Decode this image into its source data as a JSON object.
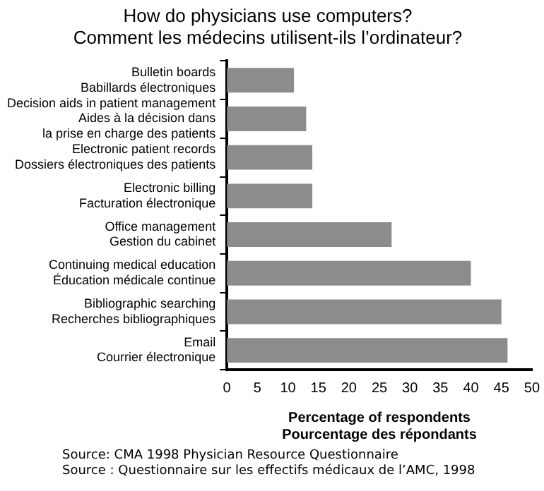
{
  "chart_data": {
    "type": "bar",
    "orientation": "horizontal",
    "title": "How do physicians use computers?\nComment les médecins utilisent-ils l’ordinateur?",
    "categories": [
      "Bulletin boards\nBabillards électroniques",
      "Decision aids in patient management\nAides à la décision dans\nla prise en charge des patients",
      "Electronic patient records\nDossiers électroniques des patients",
      "Electronic billing\nFacturation électronique",
      "Office management\nGestion du cabinet",
      "Continuing medical education\nÉducation médicale continue",
      "Bibliographic searching\nRecherches bibliographiques",
      "Email\nCourrier électronique"
    ],
    "values": [
      11,
      13,
      14,
      14,
      27,
      40,
      45,
      46
    ],
    "color": "#8c8c8c",
    "xlim": [
      0,
      50
    ],
    "xticks": [
      0,
      5,
      10,
      15,
      20,
      25,
      30,
      35,
      40,
      45,
      50
    ],
    "xlabel": "Percentage of respondents\nPourcentage des répondants",
    "grid": false,
    "annotations": [
      "Source: CMA 1998 Physician Resource Questionnaire",
      "Source : Questionnaire sur les effectifs médicaux de l’AMC, 1998"
    ]
  }
}
